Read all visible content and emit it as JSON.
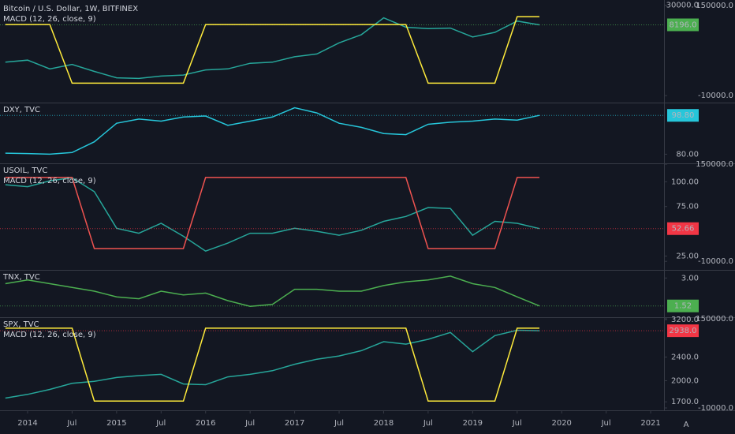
{
  "chart_data": [
    {
      "type": "line",
      "log": true,
      "x": [
        2013.75,
        2014.0,
        2014.25,
        2014.5,
        2014.75,
        2015.0,
        2015.25,
        2015.5,
        2015.75,
        2016.0,
        2016.25,
        2016.5,
        2016.75,
        2017.0,
        2017.25,
        2017.5,
        2017.75,
        2018.0,
        2018.25,
        2018.5,
        2018.75,
        2019.0,
        2019.25,
        2019.5,
        2019.75
      ],
      "ylim": [
        60,
        38000
      ],
      "yticks": [
        {
          "value": 30000,
          "label": "30000.0"
        }
      ],
      "y2lim": [
        -16800,
        156800
      ],
      "y2ticks": [
        {
          "value": 150000,
          "label": "150000.0"
        },
        {
          "value": -10000,
          "label": "-10000.0"
        }
      ],
      "series": [
        {
          "name": "Bitcoin / U.S. Dollar, 1W, BITFINEX",
          "color": "#26a69a",
          "badge_color": "#4caf50",
          "values": [
            700,
            800,
            450,
            600,
            380,
            250,
            240,
            280,
            300,
            420,
            450,
            650,
            700,
            1000,
            1200,
            2500,
            4300,
            13000,
            7000,
            6400,
            6600,
            3700,
            5000,
            10500,
            8196
          ],
          "value_labels": [
            null,
            null,
            null,
            null,
            null,
            null,
            null,
            null,
            null,
            null,
            null,
            null,
            null,
            null,
            null,
            null,
            null,
            null,
            null,
            null,
            null,
            null,
            null,
            null,
            "8196.0"
          ]
        },
        {
          "name": "MACD (12, 26, close, 9)",
          "color": "#ffeb3b",
          "axis": "y2",
          "values": [
            116000,
            116000,
            116000,
            12000,
            12000,
            12000,
            12000,
            12000,
            12000,
            116000,
            116000,
            116000,
            116000,
            116000,
            116000,
            116000,
            116000,
            116000,
            116000,
            12000,
            12000,
            12000,
            12000,
            130000,
            130000
          ]
        }
      ]
    },
    {
      "type": "line",
      "x": [
        2013.75,
        2014.0,
        2014.25,
        2014.5,
        2014.75,
        2015.0,
        2015.25,
        2015.5,
        2015.75,
        2016.0,
        2016.25,
        2016.5,
        2016.75,
        2017.0,
        2017.25,
        2017.5,
        2017.75,
        2018.0,
        2018.25,
        2018.5,
        2018.75,
        2019.0,
        2019.25,
        2019.5,
        2019.75
      ],
      "ylim": [
        77.1,
        105
      ],
      "yticks": [
        {
          "value": 80,
          "label": "80.00"
        }
      ],
      "series": [
        {
          "name": "DXY, TVC",
          "color": "#26c6da",
          "badge_color": "#26c6da",
          "values": [
            80.5,
            80.3,
            80.0,
            80.8,
            86,
            95,
            97,
            96,
            98,
            98.5,
            94,
            96,
            98,
            102.5,
            100,
            95,
            93,
            90,
            89.5,
            94.5,
            95.5,
            96,
            97,
            96.5,
            98.8
          ],
          "value_labels": [
            null,
            null,
            null,
            null,
            null,
            null,
            null,
            null,
            null,
            null,
            null,
            null,
            null,
            null,
            null,
            null,
            null,
            null,
            null,
            null,
            null,
            null,
            null,
            null,
            "98.80"
          ]
        }
      ]
    },
    {
      "type": "line",
      "x": [
        2013.75,
        2014.0,
        2014.25,
        2014.5,
        2014.75,
        2015.0,
        2015.25,
        2015.5,
        2015.75,
        2016.0,
        2016.25,
        2016.5,
        2016.75,
        2017.0,
        2017.25,
        2017.5,
        2017.75,
        2018.0,
        2018.25,
        2018.5,
        2018.75,
        2019.0,
        2019.25,
        2019.5,
        2019.75
      ],
      "ylim": [
        14.2,
        118.6
      ],
      "yticks": [
        {
          "value": 100,
          "label": "100.00"
        },
        {
          "value": 75,
          "label": "75.00"
        },
        {
          "value": 25,
          "label": "25.00"
        }
      ],
      "y2lim": [
        -18800,
        151300
      ],
      "y2ticks": [
        {
          "value": 150000,
          "label": "150000.0"
        },
        {
          "value": -10000,
          "label": "-10000.0"
        }
      ],
      "series": [
        {
          "name": "USOIL, TVC",
          "color": "#26a69a",
          "badge_color": "#f23645",
          "values": [
            97,
            95,
            101,
            104,
            90,
            53,
            48,
            58,
            45,
            30,
            38,
            48,
            48,
            53,
            50,
            46,
            51,
            60,
            65,
            74,
            73,
            46,
            60,
            58,
            52.66
          ],
          "value_labels": [
            null,
            null,
            null,
            null,
            null,
            null,
            null,
            null,
            null,
            null,
            null,
            null,
            null,
            null,
            null,
            null,
            null,
            null,
            null,
            null,
            null,
            null,
            null,
            null,
            "52.66"
          ]
        },
        {
          "name": "MACD (12, 26, close, 9)",
          "color": "#ef5350",
          "axis": "y2",
          "values": [
            128000,
            128000,
            128000,
            128000,
            11000,
            11000,
            11000,
            11000,
            11000,
            128000,
            128000,
            128000,
            128000,
            128000,
            128000,
            128000,
            128000,
            128000,
            128000,
            11000,
            11000,
            11000,
            11000,
            128000,
            128000
          ]
        }
      ]
    },
    {
      "type": "line",
      "x": [
        2013.75,
        2014.0,
        2014.25,
        2014.5,
        2014.75,
        2015.0,
        2015.25,
        2015.5,
        2015.75,
        2016.0,
        2016.25,
        2016.5,
        2016.75,
        2017.0,
        2017.25,
        2017.5,
        2017.75,
        2018.0,
        2018.25,
        2018.5,
        2018.75,
        2019.0,
        2019.25,
        2019.5,
        2019.75
      ],
      "ylim": [
        1.09,
        3.43
      ],
      "yticks": [
        {
          "value": 3,
          "label": "3.00"
        }
      ],
      "series": [
        {
          "name": "TNX, TVC",
          "color": "#4caf50",
          "badge_color": "#4caf50",
          "values": [
            2.7,
            2.9,
            2.7,
            2.5,
            2.3,
            2.0,
            1.9,
            2.3,
            2.1,
            2.2,
            1.8,
            1.5,
            1.6,
            2.4,
            2.4,
            2.3,
            2.3,
            2.6,
            2.8,
            2.9,
            3.1,
            2.7,
            2.5,
            2.0,
            1.52
          ]
        }
      ]
    },
    {
      "type": "line",
      "log": true,
      "x": [
        2013.75,
        2014.0,
        2014.25,
        2014.5,
        2014.75,
        2015.0,
        2015.25,
        2015.5,
        2015.75,
        2016.0,
        2016.25,
        2016.5,
        2016.75,
        2017.0,
        2017.25,
        2017.5,
        2017.75,
        2018.0,
        2018.25,
        2018.5,
        2018.75,
        2019.0,
        2019.25,
        2019.5,
        2019.75
      ],
      "ylim": [
        1612,
        3260
      ],
      "yticks": [
        {
          "value": 3200,
          "label": "3200.0"
        },
        {
          "value": 2400,
          "label": "2400.0"
        },
        {
          "value": 2000,
          "label": "2000.0"
        },
        {
          "value": 1700,
          "label": "1700.0"
        }
      ],
      "y2lim": [
        -11400,
        152700
      ],
      "y2ticks": [
        {
          "value": 150000,
          "label": "150000.0"
        },
        {
          "value": -10000,
          "label": "-10000.0"
        }
      ],
      "xlim": [
        2013.69,
        2021.15
      ],
      "xticks": [
        2014,
        {
          "value": 2014.5,
          "label": "Jul"
        },
        2015,
        {
          "value": 2015.5,
          "label": "Jul"
        },
        2016,
        {
          "value": 2016.5,
          "label": "Jul"
        },
        2017,
        {
          "value": 2017.5,
          "label": "Jul"
        },
        2018,
        {
          "value": 2018.5,
          "label": "Jul"
        },
        2019,
        {
          "value": 2019.5,
          "label": "Jul"
        },
        2020,
        {
          "value": 2020.5,
          "label": "Jul"
        },
        2021
      ],
      "series": [
        {
          "name": "SPX, TVC",
          "color": "#26a69a",
          "badge_color": "#f23645",
          "values": [
            1750,
            1800,
            1870,
            1960,
            1990,
            2050,
            2080,
            2100,
            1950,
            1940,
            2060,
            2100,
            2160,
            2270,
            2360,
            2420,
            2520,
            2700,
            2650,
            2750,
            2900,
            2500,
            2830,
            2950,
            2938
          ],
          "value_labels": [
            null,
            null,
            null,
            null,
            null,
            null,
            null,
            null,
            null,
            null,
            null,
            null,
            null,
            null,
            null,
            null,
            null,
            null,
            null,
            null,
            null,
            null,
            null,
            null,
            "2938.0"
          ]
        },
        {
          "name": "MACD (12, 26, close, 9)",
          "color": "#ffeb3b",
          "axis": "y2",
          "values": [
            133000,
            133000,
            133000,
            133000,
            2300,
            2300,
            2300,
            2300,
            2300,
            133000,
            133000,
            133000,
            133000,
            133000,
            133000,
            133000,
            133000,
            133000,
            133000,
            2300,
            2300,
            2300,
            2300,
            133000,
            133000
          ]
        }
      ]
    }
  ],
  "footer": {
    "auto": "A"
  }
}
